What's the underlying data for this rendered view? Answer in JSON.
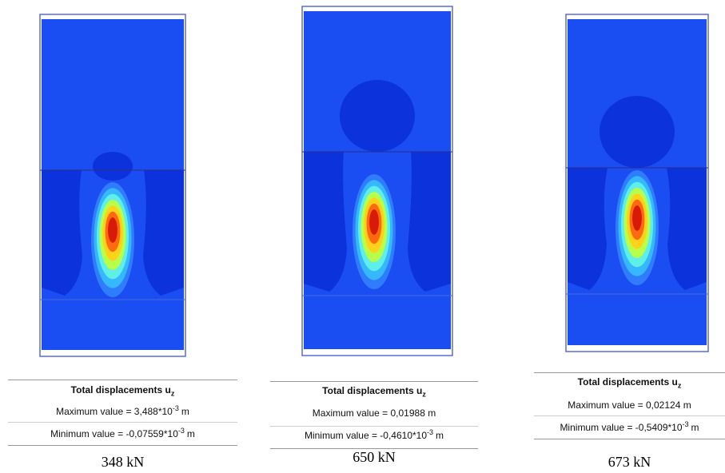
{
  "panels": [
    {
      "title": "Total displacements u",
      "title_sub": "z",
      "maximum": {
        "text": "Maximum value = 3,488*10",
        "exponent": "-3",
        "suffix": "m"
      },
      "minimum": {
        "text": "Minimum value = -0,07559*10",
        "exponent": "-3",
        "suffix": "m"
      },
      "load": "348 kN"
    },
    {
      "title": "Total displacements u",
      "title_sub": "z",
      "maximum": {
        "text": "Maximum value = 0,01988 m"
      },
      "minimum": {
        "text": "Minimum value = -0,4610*10",
        "exponent": "-3",
        "suffix": "m"
      },
      "load": "650 kN"
    },
    {
      "title": "Total displacements u",
      "title_sub": "z",
      "maximum": {
        "text": "Maximum value = 0,02124 m"
      },
      "minimum": {
        "text": "Minimum value = -0,5409*10",
        "exponent": "-3",
        "suffix": "m"
      },
      "load": "673 kN"
    }
  ]
}
